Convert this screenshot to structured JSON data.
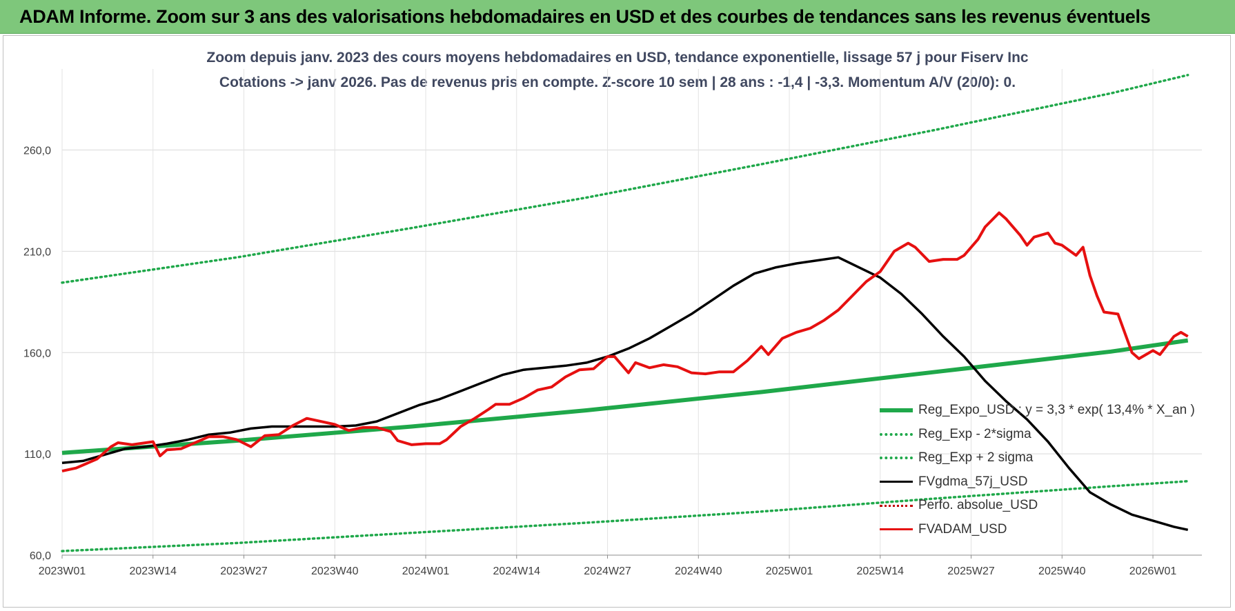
{
  "banner": {
    "title": "ADAM Informe. Zoom sur 3 ans des valorisations hebdomadaires en USD et des courbes de tendances sans les revenus éventuels"
  },
  "chart_data": {
    "type": "line",
    "title_line1": "Zoom depuis janv. 2023 des cours moyens hebdomadaires en USD, tendance exponentielle, lissage 57 j pour Fiserv Inc",
    "title_line2": "Cotations -> janv 2026. Pas de revenus pris en compte. Z-score 10 sem | 28 ans : -1,4 | -3,3. Momentum A/V (20/0): 0.",
    "x_ticks": [
      "2023W01",
      "2023W14",
      "2023W27",
      "2023W40",
      "2024W01",
      "2024W14",
      "2024W27",
      "2024W40",
      "2025W01",
      "2025W14",
      "2025W27",
      "2025W40",
      "2026W01"
    ],
    "y_ticks": [
      "60,0",
      "110,0",
      "160,0",
      "210,0",
      "260,0"
    ],
    "ylim": [
      60,
      300
    ],
    "grid": true,
    "legend_position": "bottom-right",
    "colors": {
      "reg_expo": "#1fa84a",
      "reg_sigma": "#1fa84a",
      "gdma": "#000000",
      "perfo": "#c00000",
      "adam": "#e61010"
    },
    "series": [
      {
        "name": "Reg_Expo_USD : y = 3,3 * exp( 13,4% *  X_an )",
        "key": "reg_expo",
        "style": "solid-thick",
        "points": [
          [
            0,
            110.5
          ],
          [
            25,
            116.5
          ],
          [
            50,
            123.5
          ],
          [
            75,
            131.5
          ],
          [
            100,
            140.5
          ],
          [
            125,
            150.5
          ],
          [
            150,
            160.5
          ],
          [
            161,
            166
          ]
        ]
      },
      {
        "name": "Reg_Exp - 2*sigma",
        "key": "reg_sigma",
        "style": "dotted",
        "points": [
          [
            0,
            62
          ],
          [
            25,
            66
          ],
          [
            50,
            71
          ],
          [
            75,
            76
          ],
          [
            100,
            81.5
          ],
          [
            125,
            88
          ],
          [
            150,
            94
          ],
          [
            161,
            96.5
          ]
        ]
      },
      {
        "name": "Reg_Exp + 2 sigma",
        "key": "reg_sigma",
        "style": "dotted",
        "points": [
          [
            0,
            194.5
          ],
          [
            25,
            207
          ],
          [
            50,
            221.5
          ],
          [
            75,
            236.5
          ],
          [
            100,
            253
          ],
          [
            125,
            270
          ],
          [
            150,
            288
          ],
          [
            161,
            297
          ]
        ]
      },
      {
        "name": "FVgdma_57j_USD",
        "key": "gdma",
        "style": "solid",
        "points": [
          [
            0,
            105.5
          ],
          [
            3,
            106.5
          ],
          [
            6,
            109.5
          ],
          [
            9,
            112.5
          ],
          [
            12,
            113.5
          ],
          [
            15,
            115
          ],
          [
            18,
            117
          ],
          [
            21,
            119.5
          ],
          [
            24,
            120.5
          ],
          [
            27,
            122.5
          ],
          [
            30,
            123.5
          ],
          [
            33,
            123.5
          ],
          [
            36,
            123.5
          ],
          [
            39,
            123.5
          ],
          [
            42,
            124
          ],
          [
            45,
            126
          ],
          [
            48,
            130
          ],
          [
            51,
            134
          ],
          [
            54,
            137
          ],
          [
            57,
            141
          ],
          [
            60,
            145
          ],
          [
            63,
            149
          ],
          [
            66,
            151.5
          ],
          [
            69,
            152.5
          ],
          [
            72,
            153.5
          ],
          [
            75,
            155
          ],
          [
            78,
            158
          ],
          [
            81,
            162
          ],
          [
            84,
            167
          ],
          [
            87,
            173
          ],
          [
            90,
            179
          ],
          [
            93,
            186
          ],
          [
            96,
            193
          ],
          [
            99,
            199
          ],
          [
            102,
            202
          ],
          [
            105,
            204
          ],
          [
            108,
            205.5
          ],
          [
            111,
            207
          ],
          [
            114,
            202
          ],
          [
            117,
            197
          ],
          [
            120,
            189
          ],
          [
            123,
            179
          ],
          [
            126,
            168
          ],
          [
            129,
            158
          ],
          [
            132,
            146
          ],
          [
            135,
            136
          ],
          [
            138,
            127
          ],
          [
            141,
            116
          ],
          [
            144,
            103
          ],
          [
            147,
            91
          ],
          [
            150,
            85
          ],
          [
            153,
            80
          ],
          [
            156,
            77
          ],
          [
            159,
            74
          ],
          [
            161,
            72.5
          ]
        ]
      },
      {
        "name": "Perfo. absolue_USD",
        "key": "perfo",
        "style": "dotted-thin",
        "points": []
      },
      {
        "name": "FVADAM_USD",
        "key": "adam",
        "style": "solid",
        "points": [
          [
            0,
            101.5
          ],
          [
            2,
            103
          ],
          [
            5,
            107.5
          ],
          [
            7,
            113.5
          ],
          [
            8,
            115.5
          ],
          [
            10,
            114.5
          ],
          [
            13,
            116
          ],
          [
            14,
            109
          ],
          [
            15,
            112
          ],
          [
            17,
            112.5
          ],
          [
            19,
            115.5
          ],
          [
            21,
            118.5
          ],
          [
            23,
            118.5
          ],
          [
            25,
            117
          ],
          [
            27,
            113.5
          ],
          [
            29,
            119
          ],
          [
            31,
            119.5
          ],
          [
            33,
            124
          ],
          [
            35,
            127.5
          ],
          [
            37,
            126
          ],
          [
            39,
            124.5
          ],
          [
            41,
            121.5
          ],
          [
            43,
            123
          ],
          [
            45,
            123
          ],
          [
            47,
            121
          ],
          [
            48,
            116.5
          ],
          [
            50,
            114.5
          ],
          [
            52,
            115
          ],
          [
            54,
            115
          ],
          [
            55,
            117
          ],
          [
            57,
            123.5
          ],
          [
            59,
            127.5
          ],
          [
            61,
            132
          ],
          [
            62,
            134.5
          ],
          [
            64,
            134.5
          ],
          [
            66,
            137.5
          ],
          [
            68,
            141.5
          ],
          [
            70,
            143
          ],
          [
            72,
            148
          ],
          [
            74,
            151.5
          ],
          [
            76,
            152
          ],
          [
            78,
            158
          ],
          [
            79,
            158
          ],
          [
            81,
            150
          ],
          [
            82,
            155
          ],
          [
            84,
            152.5
          ],
          [
            86,
            154
          ],
          [
            88,
            153
          ],
          [
            90,
            150
          ],
          [
            92,
            149.5
          ],
          [
            94,
            150.5
          ],
          [
            96,
            150.5
          ],
          [
            98,
            156
          ],
          [
            100,
            163
          ],
          [
            101,
            159
          ],
          [
            103,
            167
          ],
          [
            105,
            170
          ],
          [
            107,
            172
          ],
          [
            109,
            176
          ],
          [
            111,
            181
          ],
          [
            113,
            188
          ],
          [
            115,
            195
          ],
          [
            117,
            200
          ],
          [
            119,
            210
          ],
          [
            121,
            214
          ],
          [
            122,
            212
          ],
          [
            124,
            205
          ],
          [
            126,
            206
          ],
          [
            128,
            206
          ],
          [
            129,
            208
          ],
          [
            131,
            216
          ],
          [
            132,
            222
          ],
          [
            134,
            229
          ],
          [
            135,
            226
          ],
          [
            137,
            218
          ],
          [
            138,
            213
          ],
          [
            139,
            217
          ],
          [
            141,
            219
          ],
          [
            142,
            214
          ],
          [
            143,
            213
          ],
          [
            145,
            208
          ],
          [
            146,
            212
          ],
          [
            147,
            198
          ],
          [
            148,
            188
          ],
          [
            149,
            180
          ],
          [
            151,
            179
          ],
          [
            153,
            160
          ],
          [
            154,
            157
          ],
          [
            156,
            161
          ],
          [
            157,
            159
          ],
          [
            159,
            168
          ],
          [
            160,
            170
          ],
          [
            161,
            168
          ]
        ]
      }
    ]
  }
}
